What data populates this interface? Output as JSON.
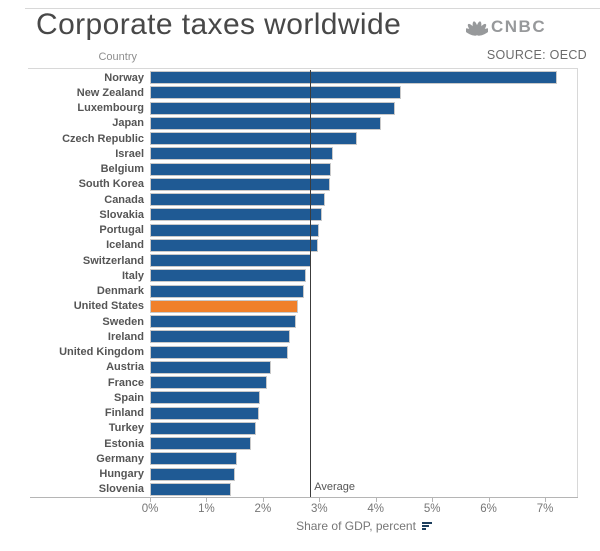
{
  "header": {
    "title": "Corporate taxes worldwide",
    "logo_text": "CNBC",
    "source": "SOURCE: OECD"
  },
  "chart": {
    "column_header": "Country",
    "average_label": "Average",
    "x_axis_caption": "Share of GDP, percent"
  },
  "chart_data": {
    "type": "bar",
    "orientation": "horizontal",
    "title": "Corporate taxes worldwide",
    "xlabel": "Share of GDP, percent",
    "ylabel": "Country",
    "xlim": [
      0,
      7.6
    ],
    "x_ticks": [
      "0%",
      "1%",
      "2%",
      "3%",
      "4%",
      "5%",
      "6%",
      "7%"
    ],
    "grid": false,
    "legend": "none",
    "categories": [
      "Norway",
      "New Zealand",
      "Luxembourg",
      "Japan",
      "Czech Republic",
      "Israel",
      "Belgium",
      "South Korea",
      "Canada",
      "Slovakia",
      "Portugal",
      "Iceland",
      "Switzerland",
      "Italy",
      "Denmark",
      "United States",
      "Sweden",
      "Ireland",
      "United Kingdom",
      "Austria",
      "France",
      "Spain",
      "Finland",
      "Turkey",
      "Estonia",
      "Germany",
      "Hungary",
      "Slovenia"
    ],
    "values": [
      7.18,
      4.41,
      4.31,
      4.05,
      3.64,
      3.21,
      3.18,
      3.15,
      3.06,
      3.01,
      2.96,
      2.94,
      2.82,
      2.73,
      2.7,
      2.59,
      2.56,
      2.45,
      2.41,
      2.11,
      2.04,
      1.91,
      1.89,
      1.84,
      1.75,
      1.51,
      1.47,
      1.4
    ],
    "highlight_category": "United States",
    "reference_line": {
      "label": "Average",
      "value": 2.84
    }
  },
  "colors": {
    "bar_blue": "#1F5A94",
    "bar_highlight_orange": "#F0802A",
    "bar_border": "#C9C9C9",
    "average_line": "#3C3C3C",
    "axis_text": "#767676",
    "label_text": "#555555",
    "title_text": "#484848",
    "logo_gray": "#97999B",
    "source_text": "#6B6B6B",
    "divider_gray": "#D8D8D8"
  }
}
